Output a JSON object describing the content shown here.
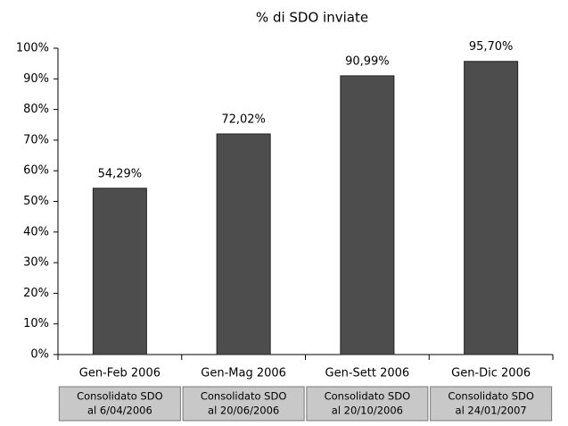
{
  "chart_data": {
    "type": "bar",
    "title": "% di SDO inviate",
    "categories": [
      "Gen-Feb 2006",
      "Gen-Mag 2006",
      "Gen-Sett 2006",
      "Gen-Dic 2006"
    ],
    "values": [
      54.29,
      72.02,
      90.99,
      95.7
    ],
    "value_labels": [
      "54,29%",
      "72,02%",
      "90,99%",
      "95,70%"
    ],
    "category_notes": [
      [
        "Consolidato SDO",
        "al 6/04/2006"
      ],
      [
        "Consolidato SDO",
        "al 20/06/2006"
      ],
      [
        "Consolidato SDO",
        "al 20/10/2006"
      ],
      [
        "Consolidato SDO",
        "al 24/01/2007"
      ]
    ],
    "color": "#4d4d4d",
    "ylim": [
      0,
      100
    ],
    "yticks": [
      {
        "value": 0,
        "label": "0%"
      },
      {
        "value": 10,
        "label": "10%"
      },
      {
        "value": 20,
        "label": "20%"
      },
      {
        "value": 30,
        "label": "30%"
      },
      {
        "value": 40,
        "label": "40%"
      },
      {
        "value": 50,
        "label": "50%"
      },
      {
        "value": 60,
        "label": "60%"
      },
      {
        "value": 70,
        "label": "70%"
      },
      {
        "value": 80,
        "label": "80%"
      },
      {
        "value": 90,
        "label": "90%"
      },
      {
        "value": 100,
        "label": "100%"
      }
    ],
    "grid": false
  }
}
